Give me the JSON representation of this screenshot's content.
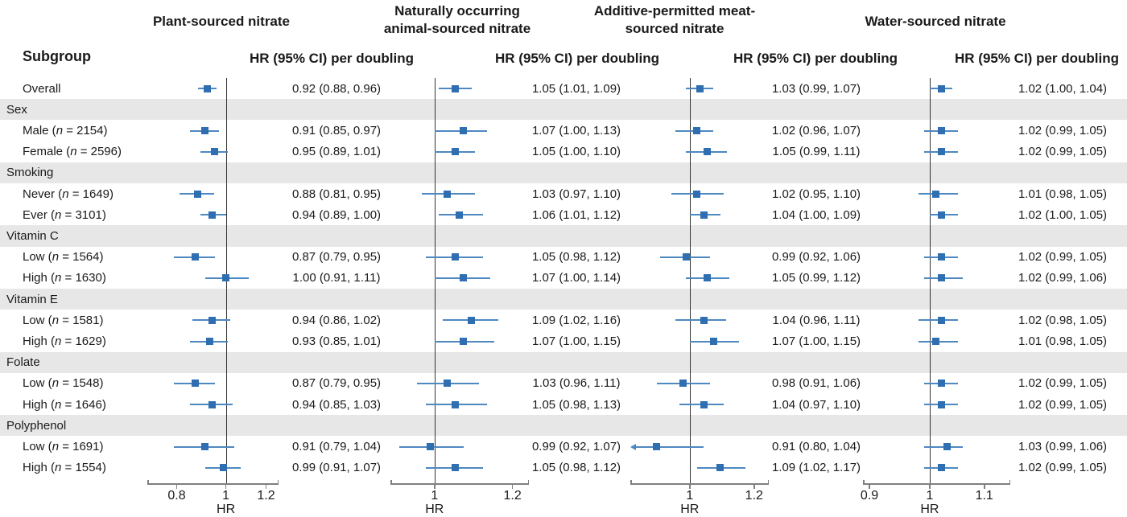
{
  "figure": {
    "subgroup_header": "Subgroup"
  },
  "chart_data": {
    "type": "forest",
    "scale": "log",
    "colors": {
      "marker": "#2f6eb0",
      "ci_line": "#4e88c1",
      "band": "#e7e7e7",
      "ref_line": "#333333",
      "axis": "#7f7f7f",
      "text": "#1a1a1a"
    },
    "columns": [
      {
        "title": "Plant-sourced nitrate",
        "hr_header": "HR (95% CI) per doubling",
        "axis_label": "HR",
        "ticks": [
          0.8,
          1,
          1.2
        ],
        "domain": [
          0.7,
          1.27
        ]
      },
      {
        "title": "Naturally occurring\nanimal-sourced nitrate",
        "hr_header": "HR (95% CI) per doubling",
        "axis_label": "HR",
        "ticks": [
          1,
          1.2
        ],
        "domain": [
          0.902,
          1.247
        ]
      },
      {
        "title": "Additive-permitted meat-\nsourced nitrate",
        "hr_header": "HR (95% CI) per doubling",
        "axis_label": "HR",
        "ticks": [
          1,
          1.2
        ],
        "domain": [
          0.845,
          1.251
        ]
      },
      {
        "title": "Water-sourced nitrate",
        "hr_header": "HR (95% CI) per doubling",
        "axis_label": "HR",
        "ticks": [
          0.9,
          1,
          1.1
        ],
        "domain": [
          0.89,
          1.151
        ]
      }
    ],
    "rows": [
      {
        "type": "data",
        "label": "Overall",
        "estimates": [
          {
            "hr": 0.92,
            "lo": 0.88,
            "hi": 0.96,
            "text": "0.92 (0.88, 0.96)"
          },
          {
            "hr": 1.05,
            "lo": 1.01,
            "hi": 1.09,
            "text": "1.05 (1.01, 1.09)"
          },
          {
            "hr": 1.03,
            "lo": 0.99,
            "hi": 1.07,
            "text": "1.03 (0.99, 1.07)"
          },
          {
            "hr": 1.02,
            "lo": 1.0,
            "hi": 1.04,
            "text": "1.02 (1.00, 1.04)"
          }
        ]
      },
      {
        "type": "category",
        "label": "Sex"
      },
      {
        "type": "data",
        "label": "Male (n = 2154)",
        "estimates": [
          {
            "hr": 0.91,
            "lo": 0.85,
            "hi": 0.97,
            "text": "0.91 (0.85, 0.97)"
          },
          {
            "hr": 1.07,
            "lo": 1.0,
            "hi": 1.13,
            "text": "1.07 (1.00, 1.13)"
          },
          {
            "hr": 1.02,
            "lo": 0.96,
            "hi": 1.07,
            "text": "1.02 (0.96, 1.07)"
          },
          {
            "hr": 1.02,
            "lo": 0.99,
            "hi": 1.05,
            "text": "1.02 (0.99, 1.05)"
          }
        ]
      },
      {
        "type": "data",
        "label": "Female (n = 2596)",
        "estimates": [
          {
            "hr": 0.95,
            "lo": 0.89,
            "hi": 1.01,
            "text": "0.95 (0.89, 1.01)"
          },
          {
            "hr": 1.05,
            "lo": 1.0,
            "hi": 1.1,
            "text": "1.05 (1.00, 1.10)"
          },
          {
            "hr": 1.05,
            "lo": 0.99,
            "hi": 1.11,
            "text": "1.05 (0.99, 1.11)"
          },
          {
            "hr": 1.02,
            "lo": 0.99,
            "hi": 1.05,
            "text": "1.02 (0.99, 1.05)"
          }
        ]
      },
      {
        "type": "category",
        "label": "Smoking"
      },
      {
        "type": "data",
        "label": "Never (n = 1649)",
        "estimates": [
          {
            "hr": 0.88,
            "lo": 0.81,
            "hi": 0.95,
            "text": "0.88 (0.81, 0.95)"
          },
          {
            "hr": 1.03,
            "lo": 0.97,
            "hi": 1.1,
            "text": "1.03 (0.97, 1.10)"
          },
          {
            "hr": 1.02,
            "lo": 0.95,
            "hi": 1.1,
            "text": "1.02 (0.95, 1.10)"
          },
          {
            "hr": 1.01,
            "lo": 0.98,
            "hi": 1.05,
            "text": "1.01 (0.98, 1.05)"
          }
        ]
      },
      {
        "type": "data",
        "label": "Ever (n = 3101)",
        "estimates": [
          {
            "hr": 0.94,
            "lo": 0.89,
            "hi": 1.0,
            "text": "0.94 (0.89, 1.00)"
          },
          {
            "hr": 1.06,
            "lo": 1.01,
            "hi": 1.12,
            "text": "1.06 (1.01, 1.12)"
          },
          {
            "hr": 1.04,
            "lo": 1.0,
            "hi": 1.09,
            "text": "1.04 (1.00, 1.09)"
          },
          {
            "hr": 1.02,
            "lo": 1.0,
            "hi": 1.05,
            "text": "1.02 (1.00, 1.05)"
          }
        ]
      },
      {
        "type": "category",
        "label": "Vitamin C"
      },
      {
        "type": "data",
        "label": "Low (n = 1564)",
        "estimates": [
          {
            "hr": 0.87,
            "lo": 0.79,
            "hi": 0.95,
            "text": "0.87 (0.79, 0.95)"
          },
          {
            "hr": 1.05,
            "lo": 0.98,
            "hi": 1.12,
            "text": "1.05 (0.98, 1.12)"
          },
          {
            "hr": 0.99,
            "lo": 0.92,
            "hi": 1.06,
            "text": "0.99 (0.92, 1.06)"
          },
          {
            "hr": 1.02,
            "lo": 0.99,
            "hi": 1.05,
            "text": "1.02 (0.99, 1.05)"
          }
        ]
      },
      {
        "type": "data",
        "label": "High (n = 1630)",
        "estimates": [
          {
            "hr": 1.0,
            "lo": 0.91,
            "hi": 1.11,
            "text": "1.00 (0.91, 1.11)"
          },
          {
            "hr": 1.07,
            "lo": 1.0,
            "hi": 1.14,
            "text": "1.07 (1.00, 1.14)"
          },
          {
            "hr": 1.05,
            "lo": 0.99,
            "hi": 1.12,
            "text": "1.05 (0.99, 1.12)"
          },
          {
            "hr": 1.02,
            "lo": 0.99,
            "hi": 1.06,
            "text": "1.02 (0.99, 1.06)"
          }
        ]
      },
      {
        "type": "category",
        "label": "Vitamin E"
      },
      {
        "type": "data",
        "label": "Low (n = 1581)",
        "estimates": [
          {
            "hr": 0.94,
            "lo": 0.86,
            "hi": 1.02,
            "text": "0.94 (0.86, 1.02)"
          },
          {
            "hr": 1.09,
            "lo": 1.02,
            "hi": 1.16,
            "text": "1.09 (1.02, 1.16)"
          },
          {
            "hr": 1.04,
            "lo": 0.96,
            "hi": 1.11,
            "text": "1.04 (0.96, 1.11)"
          },
          {
            "hr": 1.02,
            "lo": 0.98,
            "hi": 1.05,
            "text": "1.02 (0.98, 1.05)"
          }
        ]
      },
      {
        "type": "data",
        "label": "High (n = 1629)",
        "estimates": [
          {
            "hr": 0.93,
            "lo": 0.85,
            "hi": 1.01,
            "text": "0.93 (0.85, 1.01)"
          },
          {
            "hr": 1.07,
            "lo": 1.0,
            "hi": 1.15,
            "text": "1.07 (1.00, 1.15)"
          },
          {
            "hr": 1.07,
            "lo": 1.0,
            "hi": 1.15,
            "text": "1.07 (1.00, 1.15)"
          },
          {
            "hr": 1.01,
            "lo": 0.98,
            "hi": 1.05,
            "text": "1.01 (0.98, 1.05)"
          }
        ]
      },
      {
        "type": "category",
        "label": "Folate"
      },
      {
        "type": "data",
        "label": "Low (n = 1548)",
        "estimates": [
          {
            "hr": 0.87,
            "lo": 0.79,
            "hi": 0.95,
            "text": "0.87 (0.79, 0.95)"
          },
          {
            "hr": 1.03,
            "lo": 0.96,
            "hi": 1.11,
            "text": "1.03 (0.96, 1.11)"
          },
          {
            "hr": 0.98,
            "lo": 0.91,
            "hi": 1.06,
            "text": "0.98 (0.91, 1.06)"
          },
          {
            "hr": 1.02,
            "lo": 0.99,
            "hi": 1.05,
            "text": "1.02 (0.99, 1.05)"
          }
        ]
      },
      {
        "type": "data",
        "label": "High (n = 1646)",
        "estimates": [
          {
            "hr": 0.94,
            "lo": 0.85,
            "hi": 1.03,
            "text": "0.94 (0.85, 1.03)"
          },
          {
            "hr": 1.05,
            "lo": 0.98,
            "hi": 1.13,
            "text": "1.05 (0.98, 1.13)"
          },
          {
            "hr": 1.04,
            "lo": 0.97,
            "hi": 1.1,
            "text": "1.04 (0.97, 1.10)"
          },
          {
            "hr": 1.02,
            "lo": 0.99,
            "hi": 1.05,
            "text": "1.02 (0.99, 1.05)"
          }
        ]
      },
      {
        "type": "category",
        "label": "Polyphenol"
      },
      {
        "type": "data",
        "label": "Low (n = 1691)",
        "estimates": [
          {
            "hr": 0.91,
            "lo": 0.79,
            "hi": 1.04,
            "text": "0.91 (0.79, 1.04)"
          },
          {
            "hr": 0.99,
            "lo": 0.92,
            "hi": 1.07,
            "text": "0.99 (0.92, 1.07)"
          },
          {
            "hr": 0.91,
            "lo": 0.8,
            "hi": 1.04,
            "text": "0.91 (0.80, 1.04)",
            "arrow_left": true
          },
          {
            "hr": 1.03,
            "lo": 0.99,
            "hi": 1.06,
            "text": "1.03 (0.99, 1.06)"
          }
        ]
      },
      {
        "type": "data",
        "label": "High (n = 1554)",
        "estimates": [
          {
            "hr": 0.99,
            "lo": 0.91,
            "hi": 1.07,
            "text": "0.99 (0.91, 1.07)"
          },
          {
            "hr": 1.05,
            "lo": 0.98,
            "hi": 1.12,
            "text": "1.05 (0.98, 1.12)"
          },
          {
            "hr": 1.09,
            "lo": 1.02,
            "hi": 1.17,
            "text": "1.09 (1.02, 1.17)"
          },
          {
            "hr": 1.02,
            "lo": 0.99,
            "hi": 1.05,
            "text": "1.02 (0.99, 1.05)"
          }
        ]
      }
    ]
  }
}
